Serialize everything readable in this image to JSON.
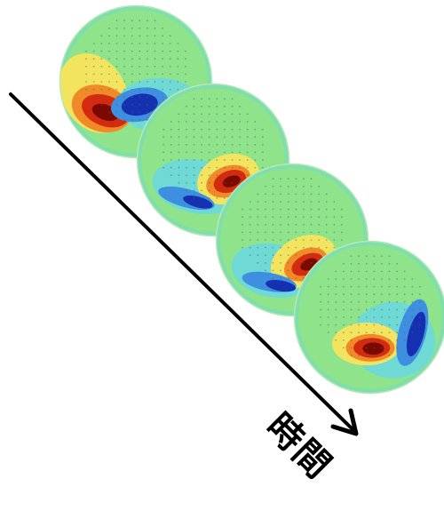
{
  "arrow_label": "時間",
  "colors": {
    "background": "#ffffff",
    "arrow": "#000000",
    "map_base": "#8fe38a",
    "map_cyan": "#6fd9d6",
    "map_blue_light": "#3f8fe0",
    "map_blue_dark": "#1530b0",
    "map_yellow": "#f3e460",
    "map_orange": "#f08a28",
    "map_red": "#d42a10",
    "map_red_dark": "#7a0a00"
  },
  "maps": [
    {
      "name": "map-1"
    },
    {
      "name": "map-2"
    },
    {
      "name": "map-3"
    },
    {
      "name": "map-4"
    }
  ]
}
